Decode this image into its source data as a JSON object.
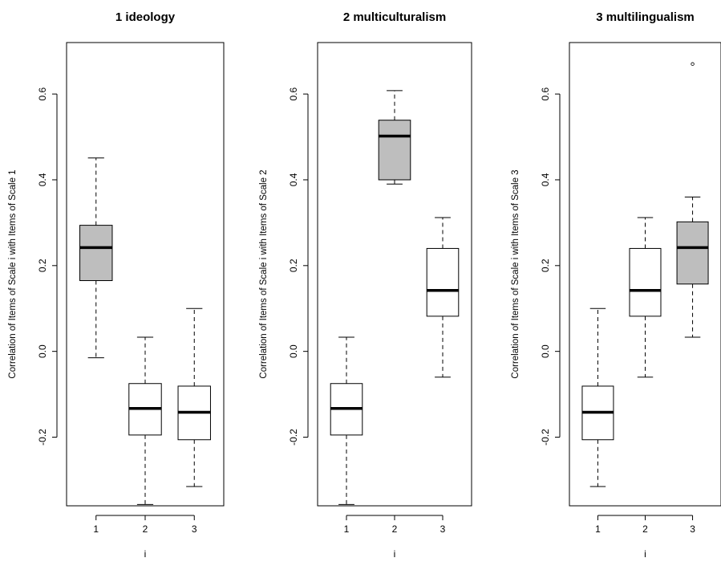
{
  "chart_data": [
    {
      "type": "box",
      "title": "1 ideology",
      "xlabel": "i",
      "ylabel": "Correlation of Items of Scale i with Items of Scale 1",
      "categories": [
        "1",
        "2",
        "3"
      ],
      "yticks": [
        "-0.2",
        "0.0",
        "0.2",
        "0.4",
        "0.6"
      ],
      "ylim": [
        -0.36,
        0.72
      ],
      "boxes": [
        {
          "category": "1",
          "whisker_low": -0.015,
          "q1": 0.165,
          "median": 0.242,
          "q3": 0.294,
          "whisker_high": 0.451,
          "shaded": true,
          "outliers": []
        },
        {
          "category": "2",
          "whisker_low": -0.357,
          "q1": -0.195,
          "median": -0.133,
          "q3": -0.075,
          "whisker_high": 0.033,
          "shaded": false,
          "outliers": []
        },
        {
          "category": "3",
          "whisker_low": -0.315,
          "q1": -0.206,
          "median": -0.142,
          "q3": -0.081,
          "whisker_high": 0.1,
          "shaded": false,
          "outliers": []
        }
      ]
    },
    {
      "type": "box",
      "title": "2 multiculturalism",
      "xlabel": "i",
      "ylabel": "Correlation of Items of Scale i with Items of Scale 2",
      "categories": [
        "1",
        "2",
        "3"
      ],
      "yticks": [
        "-0.2",
        "0.0",
        "0.2",
        "0.4",
        "0.6"
      ],
      "ylim": [
        -0.36,
        0.72
      ],
      "boxes": [
        {
          "category": "1",
          "whisker_low": -0.357,
          "q1": -0.195,
          "median": -0.133,
          "q3": -0.075,
          "whisker_high": 0.033,
          "shaded": false,
          "outliers": []
        },
        {
          "category": "2",
          "whisker_low": 0.39,
          "q1": 0.4,
          "median": 0.502,
          "q3": 0.539,
          "whisker_high": 0.608,
          "shaded": true,
          "outliers": []
        },
        {
          "category": "3",
          "whisker_low": -0.06,
          "q1": 0.082,
          "median": 0.142,
          "q3": 0.24,
          "whisker_high": 0.312,
          "shaded": false,
          "outliers": []
        }
      ]
    },
    {
      "type": "box",
      "title": "3 multilingualism",
      "xlabel": "i",
      "ylabel": "Correlation of Items of Scale i with Items of Scale 3",
      "categories": [
        "1",
        "2",
        "3"
      ],
      "yticks": [
        "-0.2",
        "0.0",
        "0.2",
        "0.4",
        "0.6"
      ],
      "ylim": [
        -0.36,
        0.72
      ],
      "boxes": [
        {
          "category": "1",
          "whisker_low": -0.315,
          "q1": -0.206,
          "median": -0.142,
          "q3": -0.081,
          "whisker_high": 0.1,
          "shaded": false,
          "outliers": []
        },
        {
          "category": "2",
          "whisker_low": -0.06,
          "q1": 0.082,
          "median": 0.142,
          "q3": 0.24,
          "whisker_high": 0.312,
          "shaded": false,
          "outliers": []
        },
        {
          "category": "3",
          "whisker_low": 0.033,
          "q1": 0.157,
          "median": 0.242,
          "q3": 0.302,
          "whisker_high": 0.36,
          "shaded": true,
          "outliers": [
            0.67
          ]
        }
      ]
    }
  ],
  "colors": {
    "shaded_box": "#bebebe",
    "plain_box": "#ffffff",
    "stroke": "#000000"
  }
}
